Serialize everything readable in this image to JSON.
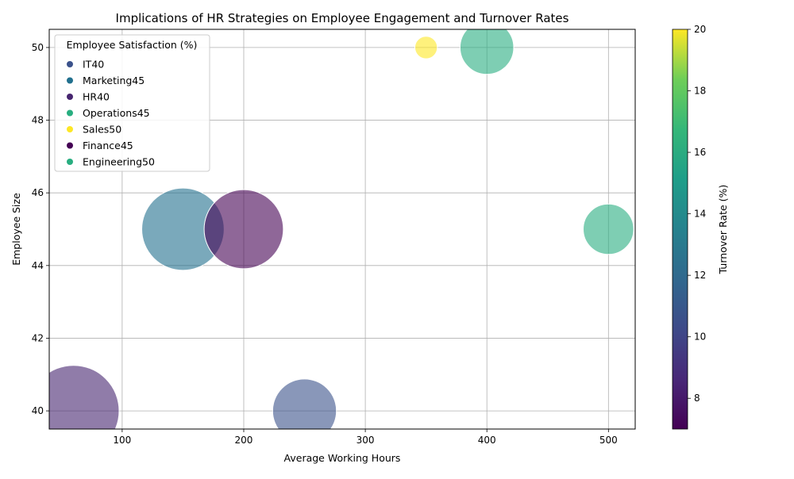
{
  "chart_data": {
    "type": "scatter",
    "title": "Implications of HR Strategies on Employee Engagement and Turnover Rates",
    "xlabel": "Average Working Hours",
    "ylabel": "Employee Size",
    "xlim": [
      40,
      522
    ],
    "ylim": [
      39.5,
      50.5
    ],
    "x_ticks": [
      100,
      200,
      300,
      400,
      500
    ],
    "y_ticks": [
      40,
      42,
      44,
      46,
      48,
      50
    ],
    "grid": true,
    "colorbar": {
      "label": "Turnover Rate (%)",
      "min": 7,
      "max": 20,
      "ticks": [
        8,
        10,
        12,
        14,
        16,
        18,
        20
      ],
      "colormap": "viridis"
    },
    "legend": {
      "title": "Employee Satisfaction (%)",
      "placement": "upper-left"
    },
    "points": [
      {
        "label": " IT40",
        "x": 250,
        "y": 40,
        "turnover": 10,
        "satisfaction": 40,
        "color": "#3b528b"
      },
      {
        "label": " Marketing45",
        "x": 150,
        "y": 45,
        "turnover": 12,
        "satisfaction": 45,
        "color": "#21708e"
      },
      {
        "label": " HR40",
        "x": 60,
        "y": 40,
        "turnover": 8,
        "satisfaction": 40,
        "color": "#46256f"
      },
      {
        "label": " Operations45",
        "x": 500,
        "y": 45,
        "turnover": 15,
        "satisfaction": 45,
        "color": "#28ae80"
      },
      {
        "label": " Sales50",
        "x": 350,
        "y": 50,
        "turnover": 20,
        "satisfaction": 50,
        "color": "#fde725"
      },
      {
        "label": " Finance45",
        "x": 200,
        "y": 45,
        "turnover": 7,
        "satisfaction": 45,
        "color": "#440154"
      },
      {
        "label": " Engineering50",
        "x": 400,
        "y": 50,
        "turnover": 15,
        "satisfaction": 50,
        "color": "#28ae80"
      }
    ],
    "bubble_area_rank": [
      {
        "label": " HR40",
        "area": 4900
      },
      {
        "label": " Marketing45",
        "area": 4000
      },
      {
        "label": " Finance45",
        "area": 3700
      },
      {
        "label": " IT40",
        "area": 2400
      },
      {
        "label": " Engineering50",
        "area": 1700
      },
      {
        "label": " Operations45",
        "area": 1500
      },
      {
        "label": " Sales50",
        "area": 300
      }
    ]
  }
}
